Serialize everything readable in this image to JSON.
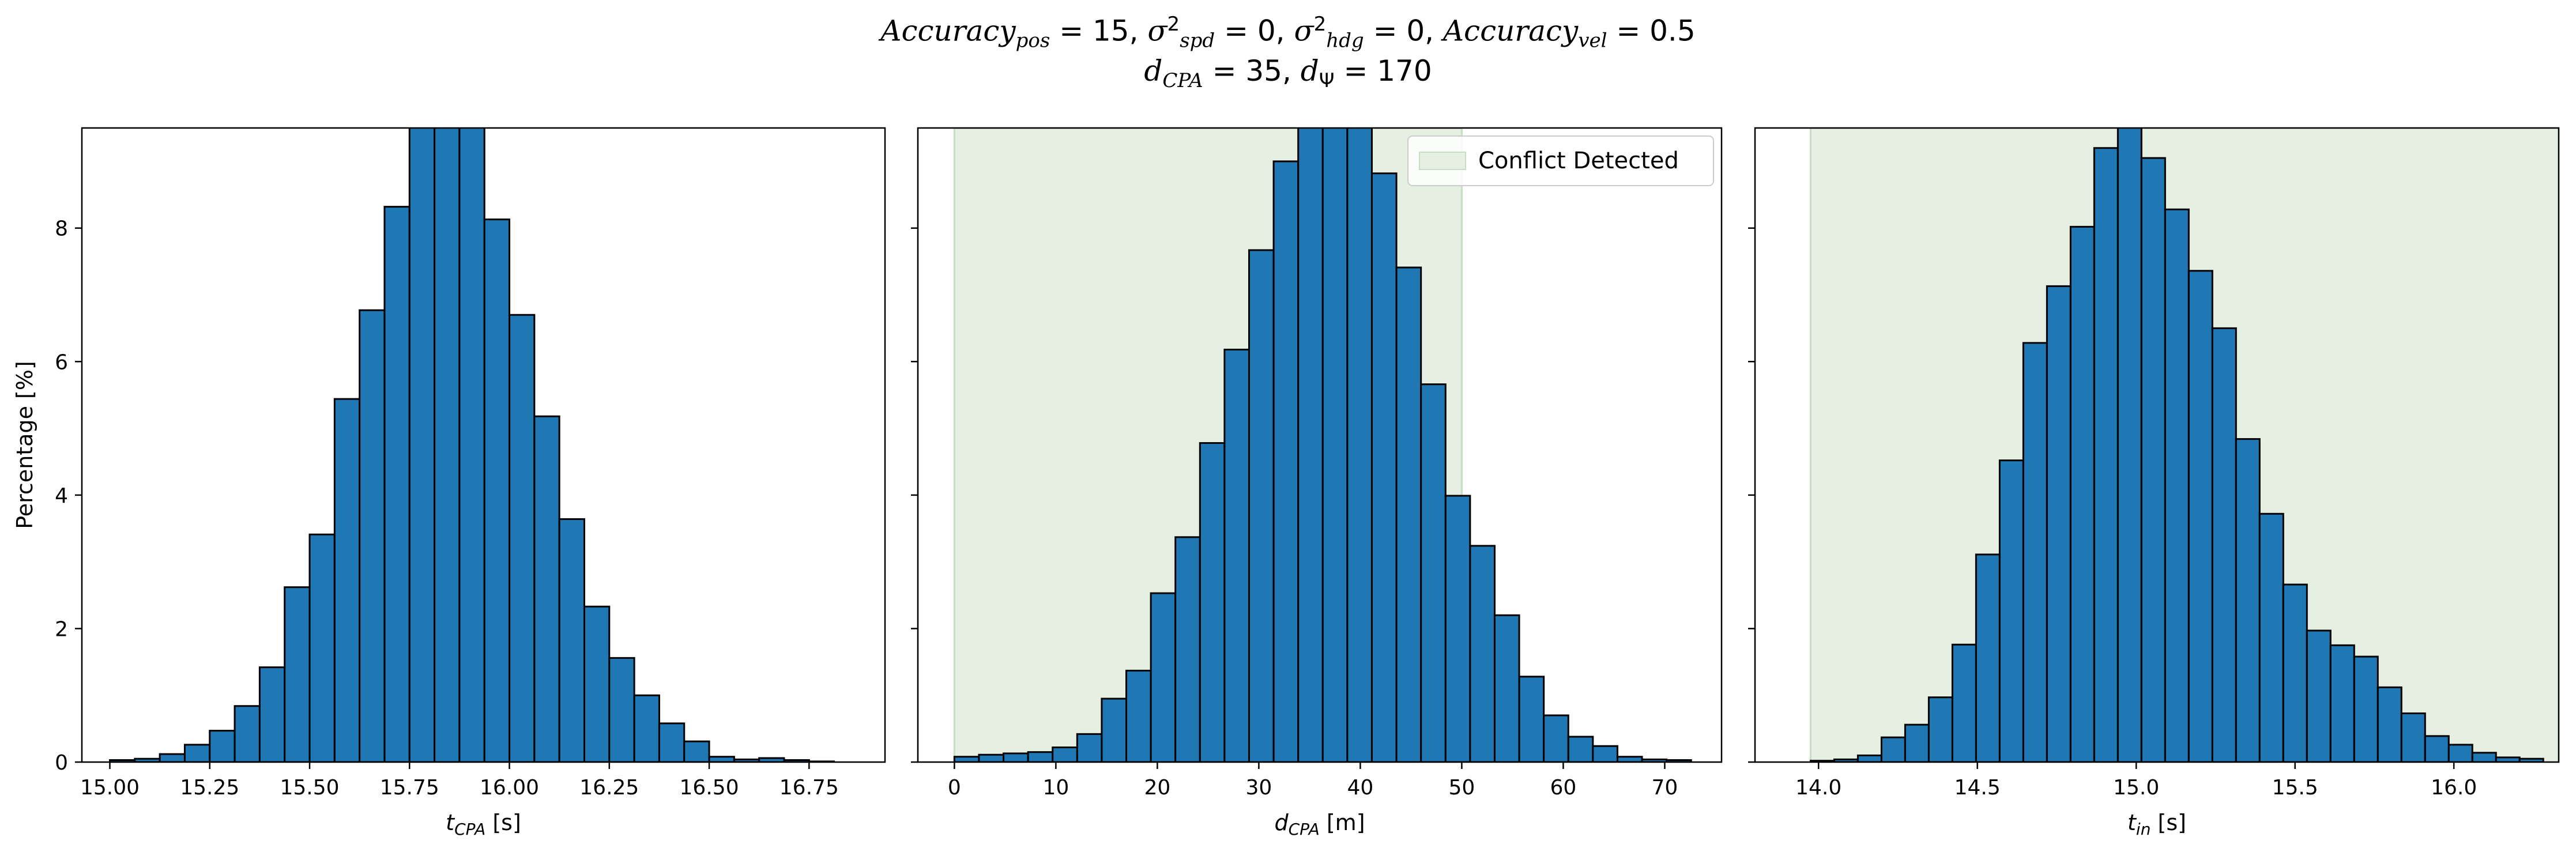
{
  "title": {
    "line1_html": "<i>Accuracy</i><sub><i>pos</i></sub> = 15, <i>σ</i><sup>2</sup><sub><i>spd</i></sub> = 0, <i>σ</i><sup>2</sup><sub><i>hdg</i></sub> = 0, <i>Accuracy</i><sub><i>vel</i></sub> = 0.5",
    "line2_html": "<i>d</i><sub><i>CPA</i></sub> = 35, <i>d</i><sub>Ψ</sub> = 170"
  },
  "colors": {
    "bar_fill": "#1f77b4",
    "bar_edge": "#000000",
    "conflict_fill": "#e5f0e3",
    "conflict_edge": "#c8ddc4",
    "axis": "#000000"
  },
  "chart_data": [
    {
      "type": "bar",
      "xlabel_html": "<tspan font-style=\"italic\">t</tspan><tspan font-style=\"italic\" font-size=\"28\" dy=\"8\">CPA</tspan><tspan dy=\"-8\"> [s]</tspan>",
      "ylabel": "Percentage [%]",
      "xlim": [
        14.93,
        16.94
      ],
      "ylim": [
        0,
        9.5
      ],
      "xticks": [
        15.0,
        15.25,
        15.5,
        15.75,
        16.0,
        16.25,
        16.5,
        16.75
      ],
      "xtick_labels": [
        "15.00",
        "15.25",
        "15.50",
        "15.75",
        "16.00",
        "16.25",
        "16.50",
        "16.75"
      ],
      "yticks": [
        0,
        2,
        4,
        6,
        8
      ],
      "ytick_labels": [
        "0",
        "2",
        "4",
        "6",
        "8"
      ],
      "bin_start": 15.0,
      "bin_width": 0.0625,
      "values": [
        0.03,
        0.05,
        0.12,
        0.26,
        0.47,
        0.84,
        1.42,
        2.62,
        3.41,
        5.44,
        6.77,
        8.32,
        9.9,
        10.1,
        9.9,
        8.13,
        6.7,
        5.18,
        3.64,
        2.33,
        1.56,
        1.0,
        0.58,
        0.31,
        0.08,
        0.04,
        0.06,
        0.03,
        0.01
      ],
      "conflict_region": null,
      "legend": null
    },
    {
      "type": "bar",
      "xlabel_html": "<tspan font-style=\"italic\">d</tspan><tspan font-style=\"italic\" font-size=\"28\" dy=\"8\">CPA</tspan><tspan dy=\"-8\"> [m]</tspan>",
      "ylabel": "",
      "xlim": [
        -3.6,
        75.6
      ],
      "ylim": [
        0,
        9.5
      ],
      "xticks": [
        0,
        10,
        20,
        30,
        40,
        50,
        60,
        70
      ],
      "xtick_labels": [
        "0",
        "10",
        "20",
        "30",
        "40",
        "50",
        "60",
        "70"
      ],
      "yticks": [
        0,
        2,
        4,
        6,
        8
      ],
      "ytick_labels": [
        "",
        "",
        "",
        "",
        ""
      ],
      "bin_start": 0,
      "bin_width": 2.42,
      "values": [
        0.08,
        0.11,
        0.13,
        0.15,
        0.22,
        0.42,
        0.95,
        1.37,
        2.53,
        3.37,
        4.78,
        6.18,
        7.67,
        9.0,
        9.9,
        10.0,
        9.9,
        8.82,
        7.41,
        5.66,
        3.99,
        3.24,
        2.2,
        1.28,
        0.7,
        0.38,
        0.24,
        0.08,
        0.04,
        0.03
      ],
      "conflict_region": [
        0,
        50
      ],
      "legend": {
        "label": "Conflict Detected",
        "position": "top-right"
      }
    },
    {
      "type": "bar",
      "xlabel_html": "<tspan font-style=\"italic\">t</tspan><tspan font-style=\"italic\" font-size=\"28\" dy=\"8\">in</tspan><tspan dy=\"-8\"> [s]</tspan>",
      "ylabel": "",
      "xlim": [
        13.8,
        16.33
      ],
      "ylim": [
        0,
        9.5
      ],
      "xticks": [
        14.0,
        14.5,
        15.0,
        15.5,
        16.0
      ],
      "xtick_labels": [
        "14.0",
        "14.5",
        "15.0",
        "15.5",
        "16.0"
      ],
      "yticks": [
        0,
        2,
        4,
        6,
        8
      ],
      "ytick_labels": [
        "",
        "",
        "",
        "",
        ""
      ],
      "bin_start": 13.975,
      "bin_width": 0.0744,
      "values": [
        0.02,
        0.04,
        0.1,
        0.37,
        0.56,
        0.97,
        1.76,
        3.11,
        4.52,
        6.28,
        7.13,
        8.02,
        9.2,
        9.6,
        9.05,
        8.28,
        7.36,
        6.5,
        4.84,
        3.72,
        2.66,
        1.97,
        1.75,
        1.58,
        1.12,
        0.73,
        0.39,
        0.26,
        0.14,
        0.07,
        0.05
      ],
      "conflict_region": [
        13.975,
        16.33
      ],
      "legend": null
    }
  ]
}
